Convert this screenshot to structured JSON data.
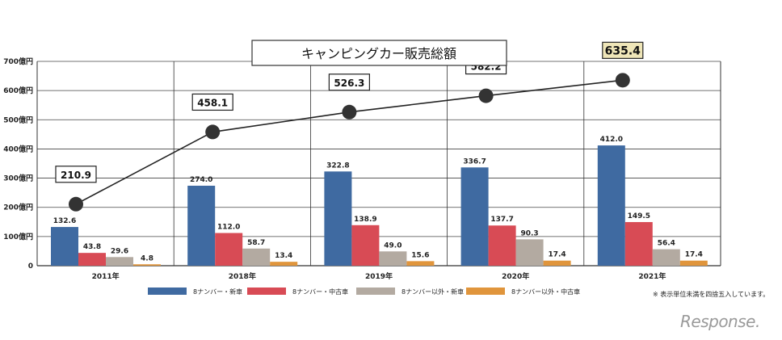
{
  "chart_data": {
    "type": "bar+line",
    "title": "キャンピングカー販売総額",
    "categories": [
      "2011年",
      "2018年",
      "2019年",
      "2020年",
      "2021年"
    ],
    "ylim": [
      0,
      700
    ],
    "y_ticks": [
      "0",
      "100億円",
      "200億円",
      "300億円",
      "400億円",
      "500億円",
      "600億円",
      "700億円"
    ],
    "y_tick_values": [
      0,
      100,
      200,
      300,
      400,
      500,
      600,
      700
    ],
    "grid": true,
    "series": [
      {
        "name": "8ナンバー・新車",
        "color": "#3f6aa1",
        "values": [
          132.6,
          274.0,
          322.8,
          336.7,
          412.0
        ],
        "labels": [
          "132.6",
          "274.0",
          "322.8",
          "336.7",
          "412.0"
        ]
      },
      {
        "name": "8ナンバー・中古車",
        "color": "#d84b55",
        "values": [
          43.8,
          112.0,
          138.9,
          137.7,
          149.5
        ],
        "labels": [
          "43.8",
          "112.0",
          "138.9",
          "137.7",
          "149.5"
        ]
      },
      {
        "name": "8ナンバー以外・新車",
        "color": "#b3aaa1",
        "values": [
          29.6,
          58.7,
          49.0,
          90.3,
          56.4
        ],
        "labels": [
          "29.6",
          "58.7",
          "49.0",
          "90.3",
          "56.4"
        ]
      },
      {
        "name": "8ナンバー以外・中古車",
        "color": "#e0953c",
        "values": [
          4.8,
          13.4,
          15.6,
          17.4,
          17.4
        ],
        "labels": [
          "4.8",
          "13.4",
          "15.6",
          "17.4",
          "17.4"
        ]
      }
    ],
    "total_line": {
      "values": [
        210.9,
        458.1,
        526.3,
        582.2,
        635.4
      ],
      "labels": [
        "210.9",
        "458.1",
        "526.3",
        "582.2",
        "635.4"
      ],
      "highlight_color": "#efe6b8"
    },
    "legend_position": "bottom",
    "note": "※ 表示単位未満を四捨五入しています。"
  },
  "watermark": "Response."
}
